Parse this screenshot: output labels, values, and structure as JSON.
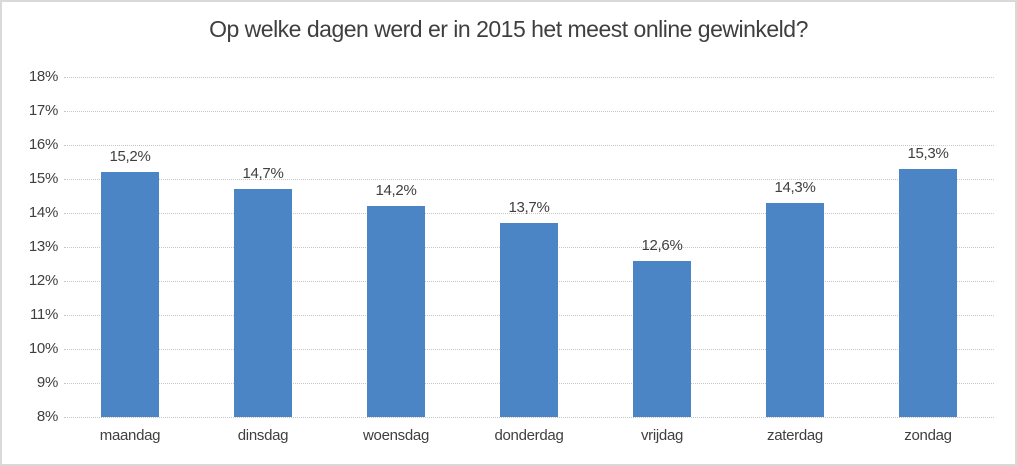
{
  "chart_data": {
    "type": "bar",
    "title": "Op welke dagen werd er in 2015 het meest online gewinkeld?",
    "categories": [
      "maandag",
      "dinsdag",
      "woensdag",
      "donderdag",
      "vrijdag",
      "zaterdag",
      "zondag"
    ],
    "values": [
      15.2,
      14.7,
      14.2,
      13.7,
      12.6,
      14.3,
      15.3
    ],
    "value_labels": [
      "15,2%",
      "14,7%",
      "14,2%",
      "13,7%",
      "12,6%",
      "14,3%",
      "15,3%"
    ],
    "xlabel": "",
    "ylabel": "",
    "ylim": [
      8,
      18
    ],
    "ytick_step": 1,
    "ytick_labels": [
      "8%",
      "9%",
      "10%",
      "11%",
      "12%",
      "13%",
      "14%",
      "15%",
      "16%",
      "17%",
      "18%"
    ],
    "grid": true,
    "gridline_style": "dotted",
    "legend": "none",
    "colors": {
      "bar": "#4c85c5",
      "text": "#3f3f3f",
      "gridline": "#c6c6c6",
      "frame_border": "#d9d9d9",
      "background": "#ffffff"
    }
  }
}
